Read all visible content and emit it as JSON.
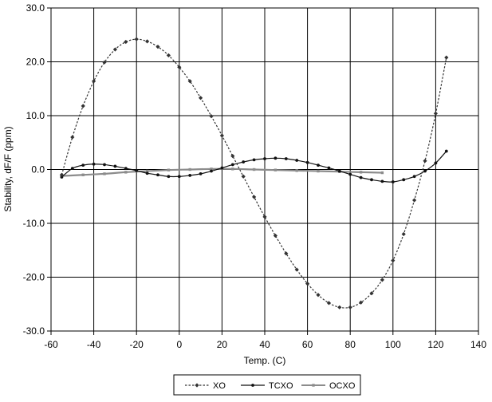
{
  "chart_data": {
    "type": "line",
    "title": "",
    "xlabel": "Temp. (C)",
    "ylabel": "Stability, dF/F (ppm)",
    "xlim": [
      -60,
      140
    ],
    "ylim": [
      -30,
      30
    ],
    "x_ticks": [
      "-60",
      "-40",
      "-20",
      "0",
      "20",
      "40",
      "60",
      "80",
      "100",
      "120",
      "140"
    ],
    "y_ticks": [
      "30.0",
      "20.0",
      "10.0",
      "0.0",
      "-10.0",
      "-20.0",
      "-30.0"
    ],
    "grid": true,
    "legend_position": "bottom",
    "series": [
      {
        "name": "XO",
        "color": "#333333",
        "line_style": "dotted",
        "marker": "diamond",
        "x": [
          -55,
          -50,
          -45,
          -40,
          -35,
          -30,
          -25,
          -20,
          -15,
          -10,
          -5,
          0,
          5,
          10,
          15,
          20,
          25,
          30,
          35,
          40,
          45,
          50,
          55,
          60,
          65,
          70,
          75,
          80,
          85,
          90,
          95,
          100,
          105,
          110,
          115,
          120,
          125
        ],
        "y": [
          -1.0,
          6.0,
          11.8,
          16.4,
          19.9,
          22.3,
          23.7,
          24.2,
          23.8,
          22.8,
          21.2,
          19.0,
          16.4,
          13.3,
          9.9,
          6.3,
          2.5,
          -1.3,
          -5.1,
          -8.8,
          -12.3,
          -15.6,
          -18.6,
          -21.2,
          -23.3,
          -24.8,
          -25.6,
          -25.6,
          -24.7,
          -23.0,
          -20.5,
          -16.9,
          -12.0,
          -5.7,
          1.6,
          10.4,
          20.8
        ]
      },
      {
        "name": "TCXO",
        "color": "#111111",
        "line_style": "solid",
        "marker": "dot",
        "x": [
          -55,
          -50,
          -45,
          -40,
          -35,
          -30,
          -25,
          -20,
          -15,
          -10,
          -5,
          0,
          5,
          10,
          15,
          20,
          25,
          30,
          35,
          40,
          45,
          50,
          55,
          60,
          65,
          70,
          75,
          80,
          85,
          90,
          95,
          100,
          105,
          110,
          115,
          120,
          125
        ],
        "y": [
          -1.4,
          0.2,
          0.8,
          1.0,
          0.9,
          0.6,
          0.2,
          -0.2,
          -0.7,
          -1.0,
          -1.3,
          -1.3,
          -1.1,
          -0.8,
          -0.3,
          0.3,
          0.9,
          1.4,
          1.8,
          2.0,
          2.1,
          2.0,
          1.7,
          1.3,
          0.8,
          0.3,
          -0.3,
          -0.9,
          -1.5,
          -1.9,
          -2.2,
          -2.3,
          -1.9,
          -1.3,
          -0.3,
          1.2,
          3.4
        ]
      },
      {
        "name": "OCXO",
        "color": "#8c8c8c",
        "line_style": "solid",
        "marker": "square",
        "x": [
          -55,
          -45,
          -35,
          -25,
          -15,
          -5,
          5,
          15,
          25,
          35,
          45,
          55,
          65,
          75,
          85,
          95
        ],
        "y": [
          -1.2,
          -1.0,
          -0.8,
          -0.5,
          -0.3,
          -0.1,
          0.0,
          0.1,
          0.1,
          0.0,
          -0.1,
          -0.2,
          -0.3,
          -0.4,
          -0.5,
          -0.6
        ]
      }
    ]
  }
}
